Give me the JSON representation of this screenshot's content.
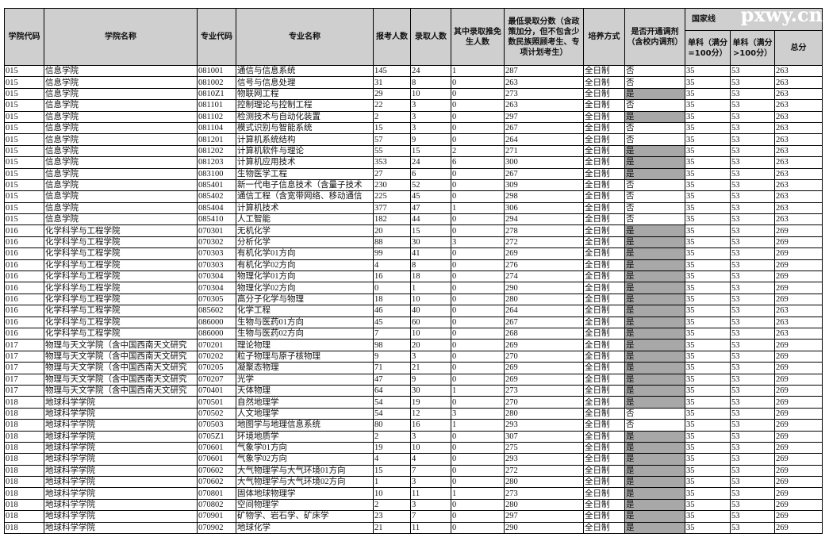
{
  "watermark": "pxwy.cn",
  "header": {
    "college_code": "学院代码",
    "college_name": "学院名称",
    "major_code": "专业代码",
    "major_name": "专业名称",
    "applicants": "报考人数",
    "admitted": "录取人数",
    "exempt": "其中录取推免生人数",
    "min_score": "最低录取分数（含政策加分，但不包含少数民族照顾考生、专项计划考生）",
    "study_mode": "培养方式",
    "adjust": "是否开通调剂（含校内调剂）",
    "national_line": "国家线",
    "single_100": "单科（满分=100分）",
    "single_gt100": "单科（满分>100分）",
    "total": "总分"
  },
  "highlight_color": "#a8a8a8",
  "rows": [
    [
      "015",
      "信息学院",
      "081001",
      "通信与信息系统",
      "145",
      "24",
      "1",
      "287",
      "全日制",
      "否",
      "35",
      "53",
      "263"
    ],
    [
      "015",
      "信息学院",
      "081002",
      "信号与信息处理",
      "31",
      "8",
      "0",
      "263",
      "全日制",
      "否",
      "35",
      "53",
      "263"
    ],
    [
      "015",
      "信息学院",
      "0810Z1",
      "物联网工程",
      "29",
      "10",
      "0",
      "273",
      "全日制",
      "是",
      "35",
      "53",
      "263"
    ],
    [
      "015",
      "信息学院",
      "081101",
      "控制理论与控制工程",
      "22",
      "3",
      "0",
      "263",
      "全日制",
      "否",
      "35",
      "53",
      "263"
    ],
    [
      "015",
      "信息学院",
      "081102",
      "检测技术与自动化装置",
      "2",
      "3",
      "0",
      "297",
      "全日制",
      "是",
      "35",
      "53",
      "263"
    ],
    [
      "015",
      "信息学院",
      "081104",
      "模式识别与智能系统",
      "15",
      "3",
      "0",
      "267",
      "全日制",
      "否",
      "35",
      "53",
      "263"
    ],
    [
      "015",
      "信息学院",
      "081201",
      "计算机系统结构",
      "57",
      "9",
      "0",
      "264",
      "全日制",
      "否",
      "35",
      "53",
      "263"
    ],
    [
      "015",
      "信息学院",
      "081202",
      "计算机软件与理论",
      "55",
      "15",
      "2",
      "271",
      "全日制",
      "是",
      "35",
      "53",
      "263"
    ],
    [
      "015",
      "信息学院",
      "081203",
      "计算机应用技术",
      "353",
      "24",
      "6",
      "300",
      "全日制",
      "是",
      "35",
      "53",
      "263"
    ],
    [
      "015",
      "信息学院",
      "083100",
      "生物医学工程",
      "27",
      "6",
      "0",
      "267",
      "全日制",
      "是",
      "35",
      "53",
      "263"
    ],
    [
      "015",
      "信息学院",
      "085401",
      "新一代电子信息技术（含量子技术",
      "230",
      "52",
      "0",
      "309",
      "全日制",
      "否",
      "35",
      "53",
      "263"
    ],
    [
      "015",
      "信息学院",
      "085402",
      "通信工程（含宽带网络、移动通信",
      "225",
      "45",
      "0",
      "298",
      "全日制",
      "否",
      "35",
      "53",
      "263"
    ],
    [
      "015",
      "信息学院",
      "085404",
      "计算机技术",
      "377",
      "47",
      "1",
      "306",
      "全日制",
      "否",
      "35",
      "53",
      "263"
    ],
    [
      "015",
      "信息学院",
      "085410",
      "人工智能",
      "182",
      "44",
      "0",
      "294",
      "全日制",
      "否",
      "35",
      "53",
      "263"
    ],
    [
      "016",
      "化学科学与工程学院",
      "070301",
      "无机化学",
      "20",
      "15",
      "0",
      "278",
      "全日制",
      "是",
      "35",
      "53",
      "269"
    ],
    [
      "016",
      "化学科学与工程学院",
      "070302",
      "分析化学",
      "88",
      "30",
      "3",
      "272",
      "全日制",
      "是",
      "35",
      "53",
      "269"
    ],
    [
      "016",
      "化学科学与工程学院",
      "070303",
      "有机化学01方向",
      "99",
      "41",
      "0",
      "269",
      "全日制",
      "是",
      "35",
      "53",
      "269"
    ],
    [
      "016",
      "化学科学与工程学院",
      "070303",
      "有机化学02方向",
      "4",
      "8",
      "0",
      "276",
      "全日制",
      "是",
      "35",
      "53",
      "269"
    ],
    [
      "016",
      "化学科学与工程学院",
      "070304",
      "物理化学01方向",
      "16",
      "18",
      "0",
      "274",
      "全日制",
      "是",
      "35",
      "53",
      "269"
    ],
    [
      "016",
      "化学科学与工程学院",
      "070304",
      "物理化学02方向",
      "0",
      "1",
      "0",
      "290",
      "全日制",
      "是",
      "35",
      "53",
      "269"
    ],
    [
      "016",
      "化学科学与工程学院",
      "070305",
      "高分子化学与物理",
      "18",
      "10",
      "0",
      "280",
      "全日制",
      "是",
      "35",
      "53",
      "269"
    ],
    [
      "016",
      "化学科学与工程学院",
      "085602",
      "化学工程",
      "46",
      "40",
      "0",
      "264",
      "全日制",
      "是",
      "35",
      "53",
      "263"
    ],
    [
      "016",
      "化学科学与工程学院",
      "086000",
      "生物与医药01方向",
      "45",
      "60",
      "0",
      "267",
      "全日制",
      "是",
      "35",
      "53",
      "263"
    ],
    [
      "016",
      "化学科学与工程学院",
      "086000",
      "生物与医药02方向",
      "7",
      "10",
      "0",
      "268",
      "全日制",
      "是",
      "35",
      "53",
      "263"
    ],
    [
      "017",
      "物理与天文学院（含中国西南天文研究",
      "070201",
      "理论物理",
      "98",
      "20",
      "0",
      "269",
      "全日制",
      "是",
      "35",
      "53",
      "269"
    ],
    [
      "017",
      "物理与天文学院（含中国西南天文研究",
      "070202",
      "粒子物理与原子核物理",
      "9",
      "3",
      "0",
      "270",
      "全日制",
      "是",
      "35",
      "53",
      "269"
    ],
    [
      "017",
      "物理与天文学院（含中国西南天文研究",
      "070205",
      "凝聚态物理",
      "71",
      "21",
      "0",
      "269",
      "全日制",
      "是",
      "35",
      "53",
      "269"
    ],
    [
      "017",
      "物理与天文学院（含中国西南天文研究",
      "070207",
      "光学",
      "47",
      "9",
      "0",
      "269",
      "全日制",
      "是",
      "35",
      "53",
      "269"
    ],
    [
      "017",
      "物理与天文学院（含中国西南天文研究",
      "070401",
      "天体物理",
      "64",
      "30",
      "1",
      "273",
      "全日制",
      "是",
      "35",
      "53",
      "269"
    ],
    [
      "018",
      "地球科学学院",
      "070501",
      "自然地理学",
      "54",
      "19",
      "0",
      "270",
      "全日制",
      "是",
      "35",
      "53",
      "269"
    ],
    [
      "018",
      "地球科学学院",
      "070502",
      "人文地理学",
      "54",
      "12",
      "3",
      "280",
      "全日制",
      "否",
      "35",
      "53",
      "269"
    ],
    [
      "018",
      "地球科学学院",
      "070503",
      "地图学与地理信息系统",
      "80",
      "16",
      "1",
      "293",
      "全日制",
      "否",
      "35",
      "53",
      "269"
    ],
    [
      "018",
      "地球科学学院",
      "0705Z1",
      "环境地质学",
      "2",
      "3",
      "0",
      "307",
      "全日制",
      "是",
      "35",
      "53",
      "269"
    ],
    [
      "018",
      "地球科学学院",
      "070601",
      "气象学01方向",
      "19",
      "10",
      "0",
      "275",
      "全日制",
      "是",
      "35",
      "53",
      "269"
    ],
    [
      "018",
      "地球科学学院",
      "070601",
      "气象学02方向",
      "4",
      "4",
      "0",
      "293",
      "全日制",
      "是",
      "35",
      "53",
      "269"
    ],
    [
      "018",
      "地球科学学院",
      "070602",
      "大气物理学与大气环境01方向",
      "15",
      "7",
      "0",
      "272",
      "全日制",
      "是",
      "35",
      "53",
      "269"
    ],
    [
      "018",
      "地球科学学院",
      "070602",
      "大气物理学与大气环境02方向",
      "1",
      "3",
      "0",
      "280",
      "全日制",
      "是",
      "35",
      "53",
      "269"
    ],
    [
      "018",
      "地球科学学院",
      "070801",
      "固体地球物理学",
      "10",
      "11",
      "1",
      "273",
      "全日制",
      "是",
      "35",
      "53",
      "269"
    ],
    [
      "018",
      "地球科学学院",
      "070802",
      "空间物理学",
      "2",
      "3",
      "0",
      "280",
      "全日制",
      "是",
      "35",
      "53",
      "269"
    ],
    [
      "018",
      "地球科学学院",
      "070901",
      "矿物学、岩石学、矿床学",
      "23",
      "7",
      "0",
      "297",
      "全日制",
      "是",
      "35",
      "53",
      "269"
    ],
    [
      "018",
      "地球科学学院",
      "070902",
      "地球化学",
      "21",
      "11",
      "0",
      "290",
      "全日制",
      "是",
      "35",
      "53",
      "269"
    ]
  ]
}
